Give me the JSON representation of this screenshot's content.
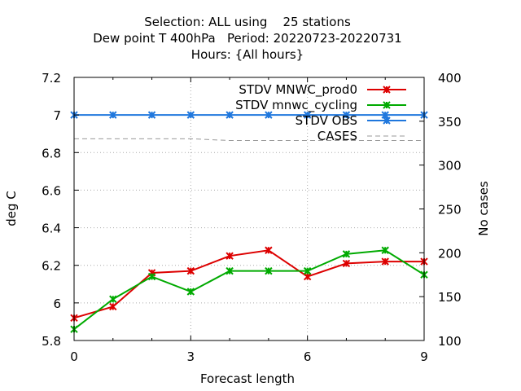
{
  "chart_data": {
    "type": "line",
    "title_lines": [
      "Selection: ALL using    25 stations",
      "Dew point T 400hPa   Period: 20220723-20220731",
      "Hours: {All hours}"
    ],
    "xlabel": "Forecast length",
    "ylabel": "deg C",
    "y2label": "No cases",
    "xlim": [
      0,
      9
    ],
    "ylim": [
      5.8,
      7.2
    ],
    "y2lim": [
      100,
      400
    ],
    "xticks": [
      0,
      3,
      6,
      9
    ],
    "yticks": [
      5.8,
      6,
      6.2,
      6.4,
      6.6,
      6.8,
      7,
      7.2
    ],
    "y2ticks": [
      100,
      150,
      200,
      250,
      300,
      350,
      400
    ],
    "grid": true,
    "legend_position": "top-right",
    "x": [
      0,
      1,
      2,
      3,
      4,
      5,
      6,
      7,
      8,
      9
    ],
    "series": [
      {
        "name": "STDV MNWC_prod0",
        "axis": "y",
        "color": "#dd0000",
        "style": "solid",
        "marker": "x",
        "values": [
          5.92,
          5.98,
          6.16,
          6.17,
          6.25,
          6.28,
          6.14,
          6.21,
          6.22,
          6.22
        ]
      },
      {
        "name": "STDV mnwc_cycling",
        "axis": "y",
        "color": "#00aa00",
        "style": "solid",
        "marker": "x",
        "values": [
          5.86,
          6.02,
          6.14,
          6.06,
          6.17,
          6.17,
          6.17,
          6.26,
          6.28,
          6.15
        ]
      },
      {
        "name": "STDV OBS",
        "axis": "y",
        "color": "#1f77dd",
        "style": "solid",
        "marker": "x",
        "values": [
          7.0,
          7.0,
          7.0,
          7.0,
          7.0,
          7.0,
          7.0,
          7.0,
          7.0,
          7.0
        ]
      },
      {
        "name": "CASES",
        "axis": "y2",
        "color": "#999999",
        "style": "dashed",
        "marker": "none",
        "values": [
          330,
          330,
          330,
          330,
          328,
          328,
          328,
          328,
          328,
          328
        ]
      }
    ]
  }
}
